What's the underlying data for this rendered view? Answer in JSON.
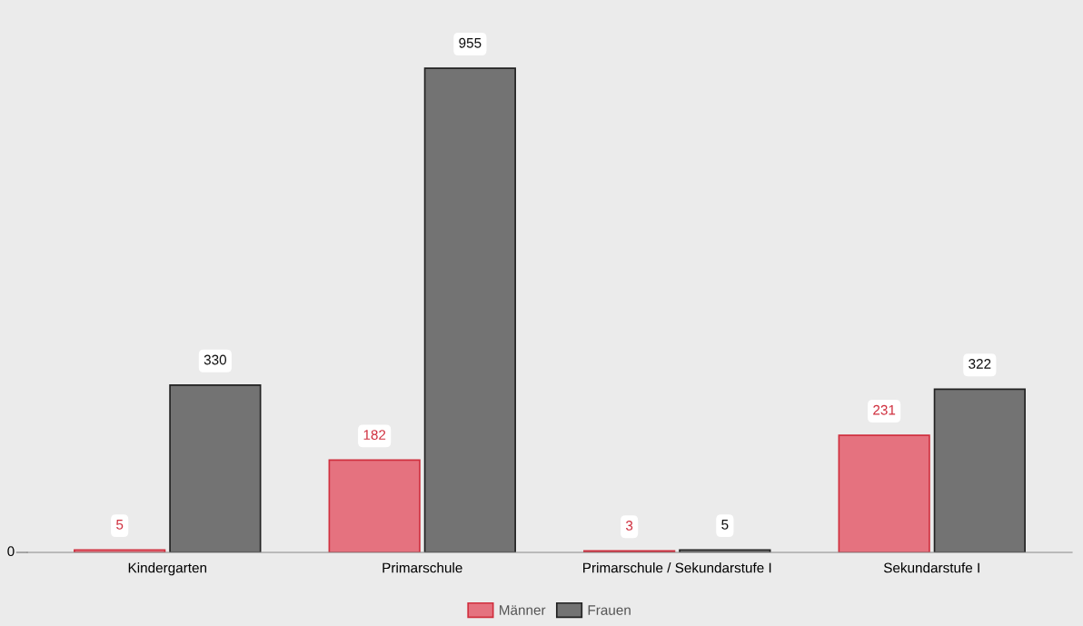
{
  "chart_data": {
    "type": "bar",
    "categories": [
      "Kindergarten",
      "Primarschule",
      "Primarschule / Sekundarstufe I",
      "Sekundarstufe I"
    ],
    "series": [
      {
        "name": "Männer",
        "color": "#e5727f",
        "values": [
          5,
          182,
          3,
          231
        ]
      },
      {
        "name": "Frauen",
        "color": "#737373",
        "values": [
          330,
          955,
          5,
          322
        ]
      }
    ],
    "annotations": [
      "0"
    ],
    "grid": false,
    "data_labels": true,
    "legend": "bottom"
  }
}
